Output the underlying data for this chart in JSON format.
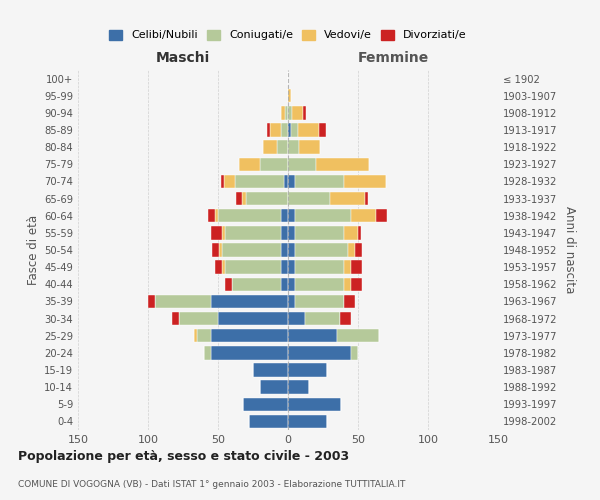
{
  "age_groups": [
    "0-4",
    "5-9",
    "10-14",
    "15-19",
    "20-24",
    "25-29",
    "30-34",
    "35-39",
    "40-44",
    "45-49",
    "50-54",
    "55-59",
    "60-64",
    "65-69",
    "70-74",
    "75-79",
    "80-84",
    "85-89",
    "90-94",
    "95-99",
    "100+"
  ],
  "birth_years": [
    "1998-2002",
    "1993-1997",
    "1988-1992",
    "1983-1987",
    "1978-1982",
    "1973-1977",
    "1968-1972",
    "1963-1967",
    "1958-1962",
    "1953-1957",
    "1948-1952",
    "1943-1947",
    "1938-1942",
    "1933-1937",
    "1928-1932",
    "1923-1927",
    "1918-1922",
    "1913-1917",
    "1908-1912",
    "1903-1907",
    "≤ 1902"
  ],
  "males": {
    "celibi": [
      28,
      32,
      20,
      25,
      55,
      55,
      50,
      55,
      5,
      5,
      5,
      5,
      5,
      0,
      3,
      0,
      0,
      0,
      0,
      0,
      0
    ],
    "coniugati": [
      0,
      0,
      0,
      0,
      5,
      10,
      28,
      40,
      35,
      40,
      42,
      40,
      45,
      30,
      35,
      20,
      8,
      5,
      2,
      0,
      0
    ],
    "vedovi": [
      0,
      0,
      0,
      0,
      0,
      2,
      0,
      0,
      0,
      2,
      2,
      2,
      2,
      3,
      8,
      15,
      10,
      8,
      3,
      0,
      0
    ],
    "divorziati": [
      0,
      0,
      0,
      0,
      0,
      0,
      5,
      5,
      5,
      5,
      5,
      8,
      5,
      4,
      2,
      0,
      0,
      2,
      0,
      0,
      0
    ]
  },
  "females": {
    "nubili": [
      28,
      38,
      15,
      28,
      45,
      35,
      12,
      5,
      5,
      5,
      5,
      5,
      5,
      0,
      5,
      0,
      0,
      2,
      0,
      0,
      0
    ],
    "coniugate": [
      0,
      0,
      0,
      0,
      5,
      30,
      25,
      35,
      35,
      35,
      38,
      35,
      40,
      30,
      35,
      20,
      8,
      5,
      3,
      0,
      0
    ],
    "vedove": [
      0,
      0,
      0,
      0,
      0,
      0,
      0,
      0,
      5,
      5,
      5,
      10,
      18,
      25,
      30,
      38,
      15,
      15,
      8,
      2,
      0
    ],
    "divorziate": [
      0,
      0,
      0,
      0,
      0,
      0,
      8,
      8,
      8,
      8,
      5,
      2,
      8,
      2,
      0,
      0,
      0,
      5,
      2,
      0,
      0
    ]
  },
  "colors": {
    "celibi": "#3d6fa8",
    "coniugati": "#b5c99a",
    "vedovi": "#f0c060",
    "divorziati": "#cc2222"
  },
  "xlim": 150,
  "title": "Popolazione per età, sesso e stato civile - 2003",
  "subtitle": "COMUNE DI VOGOGNA (VB) - Dati ISTAT 1° gennaio 2003 - Elaborazione TUTTITALIA.IT",
  "ylabel_left": "Fasce di età",
  "ylabel_right": "Anni di nascita",
  "xlabel_left": "Maschi",
  "xlabel_right": "Femmine",
  "bg_color": "#f5f5f5",
  "grid_color": "#cccccc"
}
